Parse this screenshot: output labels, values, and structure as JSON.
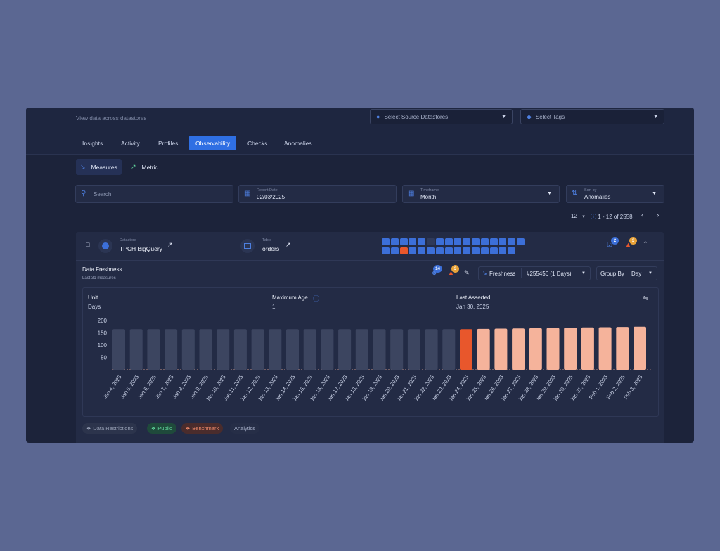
{
  "header": {
    "subtitle": "View data across datastores",
    "source_select": "Select Source Datastores",
    "tags_select": "Select Tags"
  },
  "tabs": [
    "Insights",
    "Activity",
    "Profiles",
    "Observability",
    "Checks",
    "Anomalies"
  ],
  "active_tab": "Observability",
  "views": {
    "measures": "Measures",
    "metric": "Metric"
  },
  "filters": {
    "search_placeholder": "Search",
    "report_date_label": "Report Date",
    "report_date_value": "02/03/2025",
    "timeframe_label": "Timeframe",
    "timeframe_value": "Month",
    "sort_label": "Sort by",
    "sort_value": "Anomalies"
  },
  "pager": {
    "page_size": "12",
    "range": "1 - 12 of 2558"
  },
  "card": {
    "datastore_label": "Datastore",
    "datastore_value": "TPCH BigQuery",
    "table_label": "Table",
    "table_value": "orders",
    "checks_badge": "2",
    "anomalies_badge": "3",
    "heat_highlight_index": 18
  },
  "section": {
    "title": "Data Freshness",
    "subtitle": "Last 31 measures",
    "users_badge": "14",
    "alert_badge": "3",
    "metric_name": "Freshness",
    "metric_id": "#255456 (1 Days)",
    "groupby_label": "Group By",
    "groupby_value": "Day"
  },
  "stats": {
    "unit_label": "Unit",
    "unit_value": "Days",
    "max_age_label": "Maximum Age",
    "max_age_value": "1",
    "last_asserted_label": "Last Asserted",
    "last_asserted_value": "Jan 30, 2025"
  },
  "chart_data": {
    "type": "bar",
    "categories": [
      "Jan 4, 2025",
      "Jan 5, 2025",
      "Jan 6, 2025",
      "Jan 7, 2025",
      "Jan 8, 2025",
      "Jan 9, 2025",
      "Jan 10, 2025",
      "Jan 11, 2025",
      "Jan 12, 2025",
      "Jan 13, 2025",
      "Jan 14, 2025",
      "Jan 15, 2025",
      "Jan 16, 2025",
      "Jan 17, 2025",
      "Jan 18, 2025",
      "Jan 19, 2025",
      "Jan 20, 2025",
      "Jan 21, 2025",
      "Jan 22, 2025",
      "Jan 23, 2025",
      "Jan 24, 2025",
      "Jan 25, 2025",
      "Jan 26, 2025",
      "Jan 27, 2025",
      "Jan 28, 2025",
      "Jan 29, 2025",
      "Jan 30, 2025",
      "Jan 31, 2025",
      "Feb 1, 2025",
      "Feb 2, 2025",
      "Feb 3, 2025"
    ],
    "values": [
      165,
      165,
      165,
      165,
      165,
      165,
      165,
      165,
      165,
      165,
      165,
      165,
      165,
      165,
      165,
      165,
      165,
      165,
      165,
      165,
      165,
      166,
      167,
      168,
      169,
      170,
      171,
      172,
      173,
      174,
      175
    ],
    "status": [
      "gray",
      "gray",
      "gray",
      "gray",
      "gray",
      "gray",
      "gray",
      "gray",
      "gray",
      "gray",
      "gray",
      "gray",
      "gray",
      "gray",
      "gray",
      "gray",
      "gray",
      "gray",
      "gray",
      "gray",
      "red",
      "salmon",
      "salmon",
      "salmon",
      "salmon",
      "salmon",
      "salmon",
      "salmon",
      "salmon",
      "salmon",
      "salmon"
    ],
    "yticks": [
      50,
      100,
      150,
      200
    ],
    "ylim": [
      0,
      200
    ],
    "colors": {
      "gray": "#3c4560",
      "red": "#e8572c",
      "salmon": "#f5b39b"
    }
  },
  "tags": [
    {
      "label": "Data Restrictions",
      "color": "#9aa3b8",
      "bg": "#2c344c"
    },
    {
      "label": "Public",
      "color": "#5fd39a",
      "bg": "#1f4a3b"
    },
    {
      "label": "Benchmark",
      "color": "#f08a6a",
      "bg": "#4a2c2c"
    },
    {
      "label": "Analytics",
      "color": "#aab3cc",
      "bg": "#262e47"
    }
  ]
}
